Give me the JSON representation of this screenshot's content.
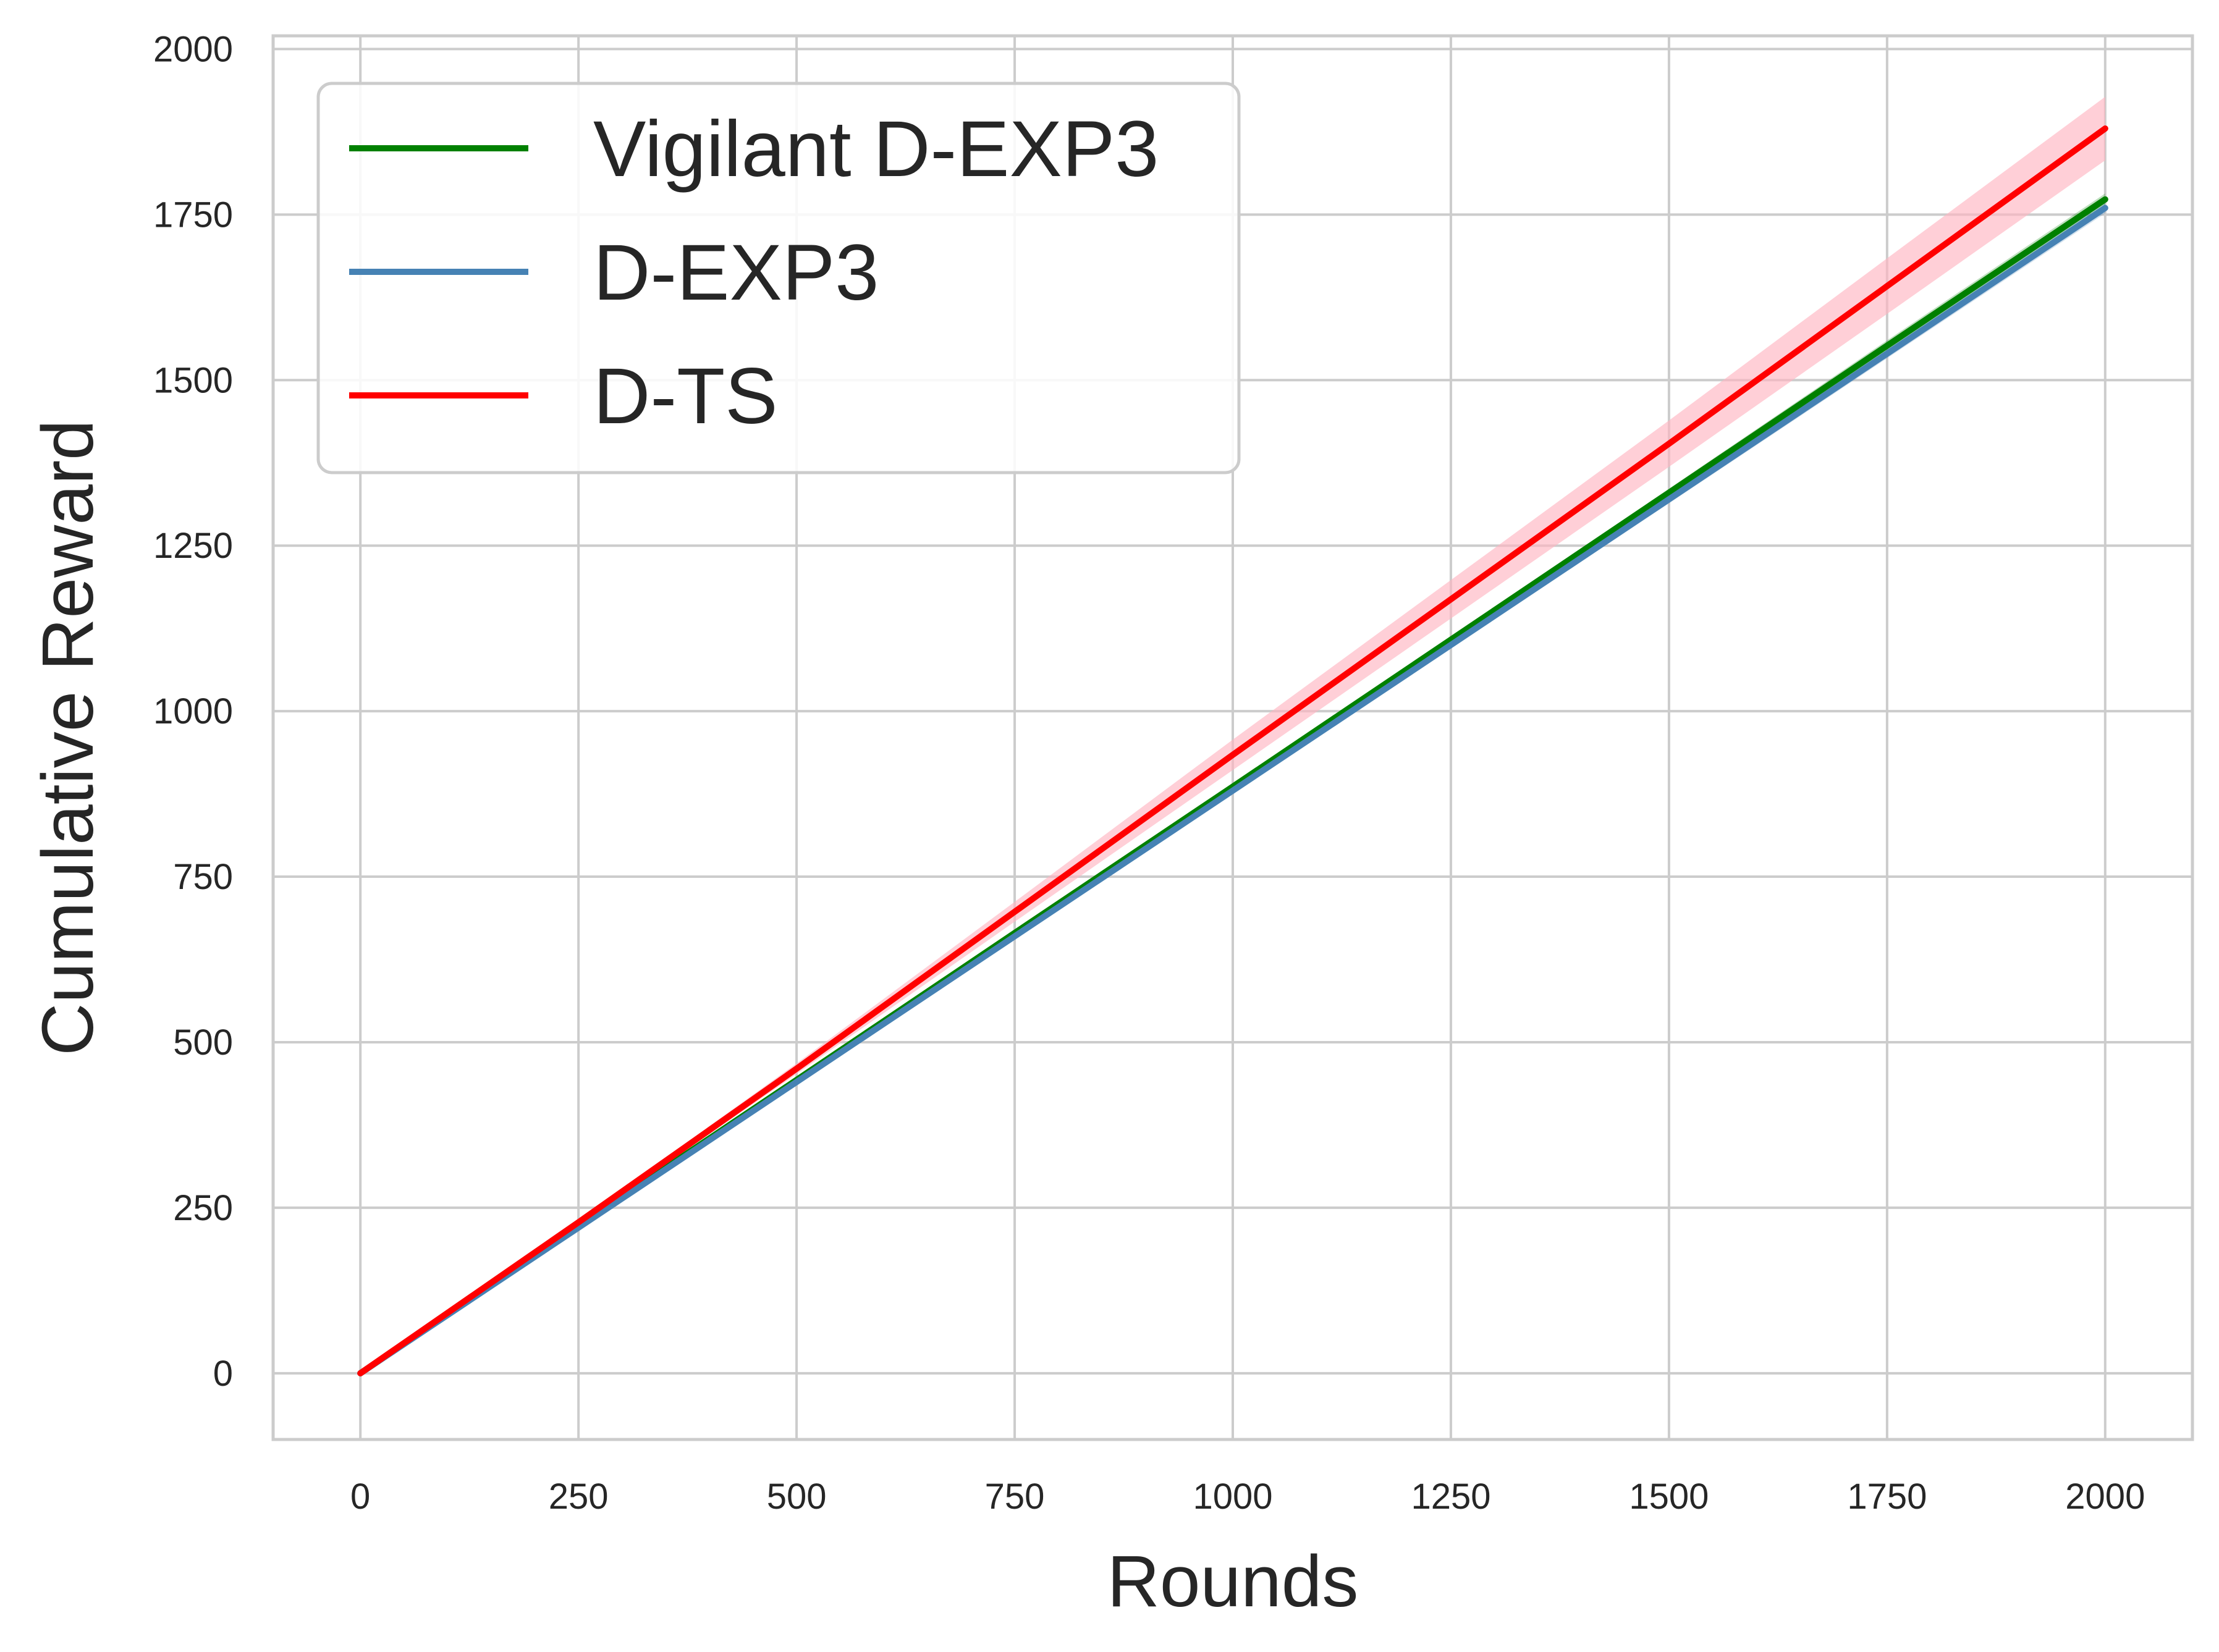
{
  "chart_data": {
    "type": "line",
    "title": "",
    "xlabel": "Rounds",
    "ylabel": "Cumulative Reward",
    "xlim": [
      -100,
      2100
    ],
    "ylim": [
      -100,
      2020
    ],
    "xticks": [
      0,
      250,
      500,
      750,
      1000,
      1250,
      1500,
      1750,
      2000
    ],
    "yticks": [
      0,
      250,
      500,
      750,
      1000,
      1250,
      1500,
      1750,
      2000
    ],
    "xtick_labels": [
      "0",
      "250",
      "500",
      "750",
      "1000",
      "1250",
      "1500",
      "1750",
      "2000"
    ],
    "ytick_labels": [
      "0",
      "250",
      "500",
      "750",
      "1000",
      "1250",
      "1500",
      "1750",
      "2000"
    ],
    "grid": true,
    "legend_position": "top-left",
    "series": [
      {
        "name": "Vigilant D-EXP3",
        "color": "#008000",
        "x": [
          0,
          250,
          500,
          750,
          1000,
          1250,
          1500,
          1750,
          2000
        ],
        "y": [
          0,
          222,
          443,
          665,
          886,
          1108,
          1330,
          1552,
          1773
        ],
        "band_lower": [
          0,
          221,
          441,
          662,
          882,
          1103,
          1324,
          1544,
          1764
        ],
        "band_upper": [
          0,
          223,
          445,
          668,
          890,
          1113,
          1336,
          1560,
          1782
        ]
      },
      {
        "name": "D-EXP3",
        "color": "#4682B4",
        "x": [
          0,
          250,
          500,
          750,
          1000,
          1250,
          1500,
          1750,
          2000
        ],
        "y": [
          0,
          220,
          440,
          660,
          880,
          1100,
          1320,
          1540,
          1760
        ],
        "band_lower": [
          0,
          219,
          438,
          657,
          876,
          1095,
          1314,
          1533,
          1752
        ],
        "band_upper": [
          0,
          221,
          442,
          663,
          884,
          1105,
          1326,
          1547,
          1768
        ]
      },
      {
        "name": "D-TS",
        "color": "#FF0000",
        "band_color": "#FFB6C1",
        "x": [
          0,
          250,
          500,
          750,
          1000,
          1250,
          1500,
          1750,
          2000
        ],
        "y": [
          0,
          228,
          460,
          697,
          934,
          1169,
          1404,
          1642,
          1880
        ],
        "band_lower": [
          0,
          225,
          452,
          682,
          911,
          1140,
          1369,
          1600,
          1832
        ],
        "band_upper": [
          0,
          231,
          468,
          712,
          957,
          1198,
          1439,
          1684,
          1928
        ]
      }
    ]
  }
}
